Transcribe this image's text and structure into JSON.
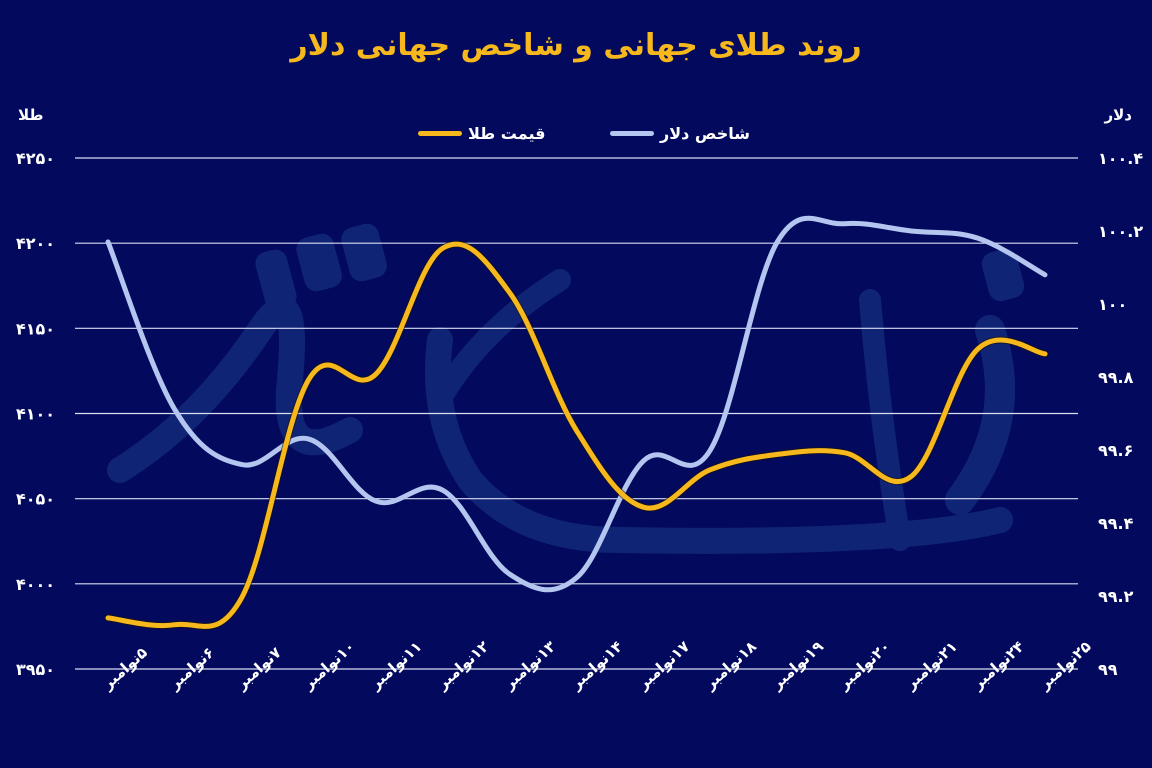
{
  "title": "روند طلای جهانی و شاخص جهانی دلار",
  "left_axis_title": "طلا",
  "right_axis_title": "دلار",
  "legend": [
    {
      "label": "شاخص دلار",
      "color": "#b4c6f0"
    },
    {
      "label": "قیمت طلا",
      "color": "#f6b81c"
    }
  ],
  "colors": {
    "background": "#030a5e",
    "gridline": "#d8ddf0",
    "gold": "#f6b81c",
    "dollar": "#b4c6f0",
    "title": "#f6b81c",
    "text": "#ffffff",
    "watermark": "#1c3a8a"
  },
  "chart_data": {
    "type": "line",
    "title": "روند طلای جهانی و شاخص جهانی دلار",
    "xlabel": "",
    "ylabel_left": "طلا",
    "ylabel_right": "دلار",
    "categories": [
      "۵نوامبر",
      "۶نوامبر",
      "۷نوامبر",
      "۱۰نوامبر",
      "۱۱نوامبر",
      "۱۲نوامبر",
      "۱۳نوامبر",
      "۱۴نوامبر",
      "۱۷نوامبر",
      "۱۸نوامبر",
      "۱۹نوامبر",
      "۲۰نوامبر",
      "۲۱نوامبر",
      "۲۴نوامبر",
      "۲۵نوامبر"
    ],
    "series": [
      {
        "name": "قیمت طلا",
        "axis": "left",
        "color": "#f6b81c",
        "values": [
          3980,
          3976,
          3992,
          4120,
          4123,
          4197,
          4171,
          4090,
          4045,
          4067,
          4076,
          4077,
          4063,
          4138,
          4135
        ]
      },
      {
        "name": "شاخص دلار",
        "axis": "right",
        "color": "#b4c6f0",
        "values": [
          100.17,
          99.71,
          99.56,
          99.63,
          99.46,
          99.49,
          99.26,
          99.25,
          99.57,
          99.6,
          100.17,
          100.22,
          100.2,
          100.18,
          100.08
        ]
      }
    ],
    "ylim_left": [
      3950,
      4250
    ],
    "ylim_right": [
      99,
      100.4
    ],
    "yticks_left": [
      "۴۲۵۰",
      "۴۲۰۰",
      "۴۱۵۰",
      "۴۱۰۰",
      "۴۰۵۰",
      "۴۰۰۰",
      "۳۹۵۰"
    ],
    "yticks_right": [
      "۱۰۰.۴",
      "۱۰۰.۲",
      "۱۰۰",
      "۹۹.۸",
      "۹۹.۶",
      "۹۹.۴",
      "۹۹.۲",
      "۹۹"
    ],
    "grid": true,
    "legend_position": "top"
  }
}
